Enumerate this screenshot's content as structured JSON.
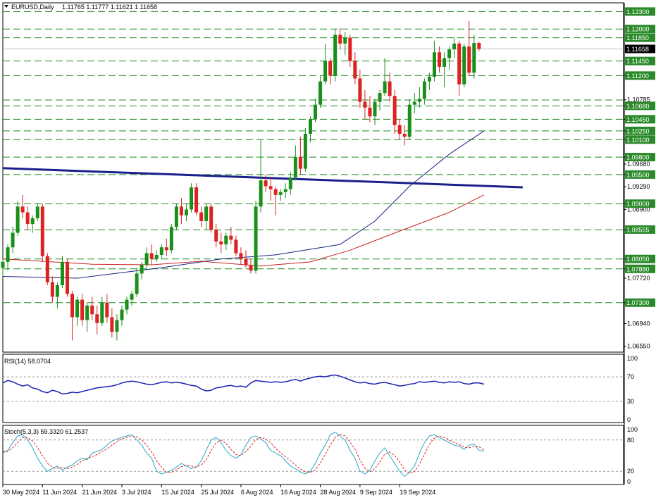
{
  "chart_data": {
    "type": "candlestick",
    "symbol": "EURUSD",
    "timeframe": "Daily",
    "header": {
      "title": "EURUSD,Daily",
      "ohlc": "1.11765 1.11777 1.11621 1.11658"
    },
    "price_axis": {
      "ylim": [
        1.0645,
        1.1245
      ],
      "plain_ticks": [
        "1.11200",
        "1.10785",
        "1.10680",
        "1.10450",
        "1.10250",
        "1.10100",
        "1.09800",
        "1.09680",
        "1.09500",
        "1.09290",
        "1.09000",
        "1.08900",
        "1.08555",
        "1.08050",
        "1.07880",
        "1.07720",
        "1.07300",
        "1.06940",
        "1.06550"
      ],
      "highlight_ticks": [
        "1.12300",
        "1.12000",
        "1.11850",
        "1.11450",
        "1.11200",
        "1.10680",
        "1.10450",
        "1.10250",
        "1.10100",
        "1.09800",
        "1.09500",
        "1.09000",
        "1.08555",
        "1.08050",
        "1.07880",
        "1.07300"
      ],
      "current_price": "1.11658"
    },
    "horizontal_levels": [
      1.123,
      1.12,
      1.1185,
      1.1145,
      1.112,
      1.1078,
      1.1068,
      1.1045,
      1.1025,
      1.101,
      1.098,
      1.095,
      1.09,
      1.0855,
      1.0805,
      1.0788,
      1.073
    ],
    "trendline": {
      "from": [
        "30 May 2024",
        1.0961
      ],
      "to": [
        "26 Sep 2024",
        1.0928
      ]
    },
    "moving_averages": [
      {
        "color": "#1a237e",
        "points": [
          [
            0,
            1.0775
          ],
          [
            15,
            1.0772
          ],
          [
            32,
            1.079
          ],
          [
            44,
            1.0805
          ],
          [
            55,
            1.0812
          ],
          [
            68,
            1.083
          ],
          [
            75,
            1.087
          ],
          [
            82,
            1.093
          ],
          [
            90,
            1.0985
          ],
          [
            97,
            1.1025
          ]
        ]
      },
      {
        "color": "#cc2222",
        "points": [
          [
            0,
            1.0805
          ],
          [
            18,
            1.0796
          ],
          [
            30,
            1.0795
          ],
          [
            40,
            1.0801
          ],
          [
            52,
            1.0793
          ],
          [
            62,
            1.08
          ],
          [
            70,
            1.082
          ],
          [
            80,
            1.0853
          ],
          [
            90,
            1.0885
          ],
          [
            97,
            1.0915
          ]
        ]
      }
    ],
    "candles": [
      [
        1.079,
        1.0805,
        1.0775,
        1.08
      ],
      [
        1.08,
        1.083,
        1.0785,
        1.0825
      ],
      [
        1.0825,
        1.086,
        1.0815,
        1.085
      ],
      [
        1.085,
        1.0905,
        1.0845,
        1.0895
      ],
      [
        1.0895,
        1.0915,
        1.0875,
        1.0885
      ],
      [
        1.0885,
        1.0895,
        1.0855,
        1.0865
      ],
      [
        1.0865,
        1.088,
        1.085,
        1.0875
      ],
      [
        1.0875,
        1.09,
        1.087,
        1.0895
      ],
      [
        1.0895,
        1.09,
        1.08,
        1.081
      ],
      [
        1.081,
        1.0815,
        1.076,
        1.0765
      ],
      [
        1.0765,
        1.0775,
        1.073,
        1.074
      ],
      [
        1.074,
        1.0765,
        1.072,
        1.076
      ],
      [
        1.076,
        1.081,
        1.0755,
        1.08
      ],
      [
        1.08,
        1.0805,
        1.074,
        1.0745
      ],
      [
        1.0745,
        1.075,
        1.0665,
        1.0705
      ],
      [
        1.0705,
        1.074,
        1.069,
        1.0735
      ],
      [
        1.0735,
        1.0745,
        1.069,
        1.07
      ],
      [
        1.07,
        1.073,
        1.068,
        1.0725
      ],
      [
        1.0725,
        1.074,
        1.07,
        1.071
      ],
      [
        1.071,
        1.0725,
        1.0675,
        1.0695
      ],
      [
        1.0695,
        1.074,
        1.069,
        1.073
      ],
      [
        1.073,
        1.0745,
        1.0695,
        1.0705
      ],
      [
        1.0705,
        1.072,
        1.067,
        1.068
      ],
      [
        1.068,
        1.071,
        1.0665,
        1.07
      ],
      [
        1.07,
        1.0725,
        1.069,
        1.0718
      ],
      [
        1.0718,
        1.074,
        1.071,
        1.0735
      ],
      [
        1.0735,
        1.075,
        1.0725,
        1.0745
      ],
      [
        1.0745,
        1.079,
        1.074,
        1.078
      ],
      [
        1.078,
        1.08,
        1.077,
        1.0795
      ],
      [
        1.0795,
        1.0825,
        1.079,
        1.0815
      ],
      [
        1.0815,
        1.083,
        1.0795,
        1.0805
      ],
      [
        1.0805,
        1.082,
        1.08,
        1.0812
      ],
      [
        1.0812,
        1.083,
        1.0805,
        1.0825
      ],
      [
        1.0825,
        1.084,
        1.081,
        1.082
      ],
      [
        1.082,
        1.0865,
        1.0815,
        1.086
      ],
      [
        1.086,
        1.09,
        1.0855,
        1.0895
      ],
      [
        1.0895,
        1.091,
        1.0865,
        1.088
      ],
      [
        1.088,
        1.09,
        1.087,
        1.089
      ],
      [
        1.089,
        1.0935,
        1.0885,
        1.0928
      ],
      [
        1.0928,
        1.0935,
        1.088,
        1.0885
      ],
      [
        1.0885,
        1.0895,
        1.086,
        1.087
      ],
      [
        1.087,
        1.09,
        1.0855,
        1.0895
      ],
      [
        1.0895,
        1.09,
        1.085,
        1.0855
      ],
      [
        1.0855,
        1.0865,
        1.0825,
        1.0835
      ],
      [
        1.0835,
        1.085,
        1.0815,
        1.083
      ],
      [
        1.083,
        1.085,
        1.082,
        1.0845
      ],
      [
        1.0845,
        1.086,
        1.083,
        1.0838
      ],
      [
        1.0838,
        1.0845,
        1.081,
        1.0815
      ],
      [
        1.0815,
        1.0825,
        1.0795,
        1.0805
      ],
      [
        1.0805,
        1.082,
        1.079,
        1.0795
      ],
      [
        1.0795,
        1.0805,
        1.078,
        1.0785
      ],
      [
        1.0785,
        1.0905,
        1.078,
        1.0895
      ],
      [
        1.0895,
        1.101,
        1.0885,
        1.094
      ],
      [
        1.094,
        1.095,
        1.092,
        1.093
      ],
      [
        1.093,
        1.0945,
        1.0905,
        1.0925
      ],
      [
        1.0925,
        1.093,
        1.088,
        1.0915
      ],
      [
        1.0915,
        1.0925,
        1.0905,
        1.092
      ],
      [
        1.092,
        1.0935,
        1.091,
        1.0925
      ],
      [
        1.0925,
        1.0955,
        1.0915,
        1.0945
      ],
      [
        1.0945,
        1.1,
        1.094,
        1.098
      ],
      [
        1.098,
        1.1015,
        1.095,
        1.096
      ],
      [
        1.096,
        1.103,
        1.0955,
        1.102
      ],
      [
        1.102,
        1.105,
        1.1005,
        1.1045
      ],
      [
        1.1045,
        1.108,
        1.104,
        1.107
      ],
      [
        1.107,
        1.112,
        1.1065,
        1.111
      ],
      [
        1.111,
        1.1175,
        1.1105,
        1.1145
      ],
      [
        1.1145,
        1.115,
        1.1105,
        1.112
      ],
      [
        1.112,
        1.12,
        1.111,
        1.119
      ],
      [
        1.119,
        1.1202,
        1.1165,
        1.1175
      ],
      [
        1.1175,
        1.1195,
        1.1155,
        1.1185
      ],
      [
        1.1185,
        1.119,
        1.1135,
        1.1145
      ],
      [
        1.1145,
        1.116,
        1.1105,
        1.1115
      ],
      [
        1.1115,
        1.113,
        1.1065,
        1.1075
      ],
      [
        1.1075,
        1.1095,
        1.1045,
        1.1065
      ],
      [
        1.1065,
        1.1085,
        1.104,
        1.105
      ],
      [
        1.105,
        1.108,
        1.1035,
        1.1075
      ],
      [
        1.1075,
        1.1095,
        1.106,
        1.109
      ],
      [
        1.109,
        1.115,
        1.1085,
        1.111
      ],
      [
        1.111,
        1.1125,
        1.1075,
        1.1085
      ],
      [
        1.1085,
        1.1095,
        1.102,
        1.1035
      ],
      [
        1.1035,
        1.1045,
        1.101,
        1.102
      ],
      [
        1.102,
        1.1035,
        1.1,
        1.1015
      ],
      [
        1.1015,
        1.108,
        1.101,
        1.107
      ],
      [
        1.107,
        1.109,
        1.1055,
        1.1075
      ],
      [
        1.1075,
        1.11,
        1.1065,
        1.108
      ],
      [
        1.108,
        1.1115,
        1.107,
        1.111
      ],
      [
        1.111,
        1.1125,
        1.1095,
        1.1118
      ],
      [
        1.1118,
        1.118,
        1.111,
        1.116
      ],
      [
        1.116,
        1.117,
        1.1125,
        1.1135
      ],
      [
        1.1135,
        1.116,
        1.11,
        1.115
      ],
      [
        1.115,
        1.117,
        1.113,
        1.1165
      ],
      [
        1.1165,
        1.1185,
        1.115,
        1.1175
      ],
      [
        1.1175,
        1.118,
        1.1085,
        1.1105
      ],
      [
        1.1105,
        1.1175,
        1.11,
        1.117
      ],
      [
        1.117,
        1.1214,
        1.112,
        1.1125
      ],
      [
        1.1125,
        1.119,
        1.1115,
        1.1176
      ],
      [
        1.1176,
        1.1178,
        1.1162,
        1.1166
      ]
    ],
    "rsi": {
      "label": "RSI(14) 58.0704",
      "levels": [
        "100",
        "70",
        "30",
        "0"
      ],
      "values": [
        60,
        64,
        62,
        58,
        55,
        57,
        52,
        50,
        46,
        44,
        48,
        46,
        42,
        43,
        45,
        44,
        46,
        48,
        50,
        52,
        53,
        54,
        55,
        57,
        60,
        62,
        63,
        62,
        60,
        58,
        57,
        59,
        61,
        62,
        60,
        61,
        60,
        58,
        56,
        55,
        50,
        47,
        48,
        52,
        53,
        55,
        56,
        54,
        55,
        53,
        60,
        64,
        63,
        62,
        61,
        62,
        61,
        62,
        64,
        66,
        63,
        66,
        68,
        70,
        71,
        70,
        72,
        73,
        71,
        68,
        65,
        62,
        60,
        61,
        59,
        58,
        60,
        61,
        59,
        57,
        55,
        56,
        58,
        59,
        62,
        61,
        62,
        63,
        61,
        60,
        62,
        61,
        62,
        59,
        58,
        60,
        60,
        58
      ]
    },
    "stoch": {
      "label": "Stoch(5,3,3) 59.3320 61.2537",
      "levels": [
        "100",
        "80",
        "20",
        "0"
      ],
      "main": [
        55,
        60,
        75,
        88,
        90,
        80,
        65,
        45,
        30,
        20,
        25,
        30,
        22,
        28,
        32,
        40,
        45,
        42,
        55,
        58,
        62,
        70,
        78,
        82,
        85,
        88,
        90,
        80,
        70,
        55,
        45,
        20,
        15,
        18,
        22,
        28,
        35,
        30,
        25,
        28,
        40,
        60,
        80,
        85,
        75,
        60,
        50,
        45,
        52,
        70,
        85,
        88,
        82,
        75,
        60,
        55,
        50,
        40,
        30,
        25,
        18,
        15,
        20,
        35,
        55,
        70,
        90,
        95,
        88,
        80,
        60,
        45,
        20,
        15,
        22,
        40,
        55,
        65,
        50,
        35,
        20,
        10,
        18,
        30,
        55,
        75,
        88,
        90,
        85,
        80,
        75,
        70,
        68,
        62,
        70,
        72,
        60,
        59
      ],
      "signal": [
        58,
        58,
        65,
        75,
        85,
        85,
        78,
        65,
        50,
        35,
        28,
        26,
        27,
        25,
        28,
        33,
        40,
        45,
        48,
        52,
        58,
        63,
        70,
        77,
        82,
        85,
        88,
        86,
        80,
        70,
        57,
        40,
        28,
        18,
        18,
        23,
        29,
        31,
        30,
        28,
        32,
        42,
        60,
        75,
        80,
        73,
        62,
        52,
        50,
        58,
        68,
        81,
        85,
        82,
        74,
        64,
        55,
        48,
        40,
        32,
        24,
        19,
        18,
        23,
        36,
        52,
        70,
        85,
        91,
        88,
        76,
        62,
        42,
        26,
        19,
        25,
        38,
        53,
        57,
        50,
        38,
        22,
        16,
        19,
        34,
        53,
        72,
        84,
        88,
        85,
        80,
        75,
        71,
        66,
        65,
        68,
        67,
        61
      ]
    },
    "date_labels": [
      "30 May 2024",
      "11 Jun 2024",
      "21 Jun 2024",
      "3 Jul 2024",
      "15 Jul 2024",
      "25 Jul 2024",
      "6 Aug 2024",
      "16 Aug 2024",
      "28 Aug 2024",
      "9 Sep 2024",
      "19 Sep 2024"
    ],
    "colors": {
      "bull": "#1a8f1a",
      "bear": "#dd2222",
      "level_line": "#1e8a1e",
      "trendline": "#1a1f8c",
      "rsi": "#1a1fb5",
      "stoch_main": "#2aa8c8",
      "stoch_signal": "#dd2222",
      "highlight": "#2a8a2a"
    }
  }
}
